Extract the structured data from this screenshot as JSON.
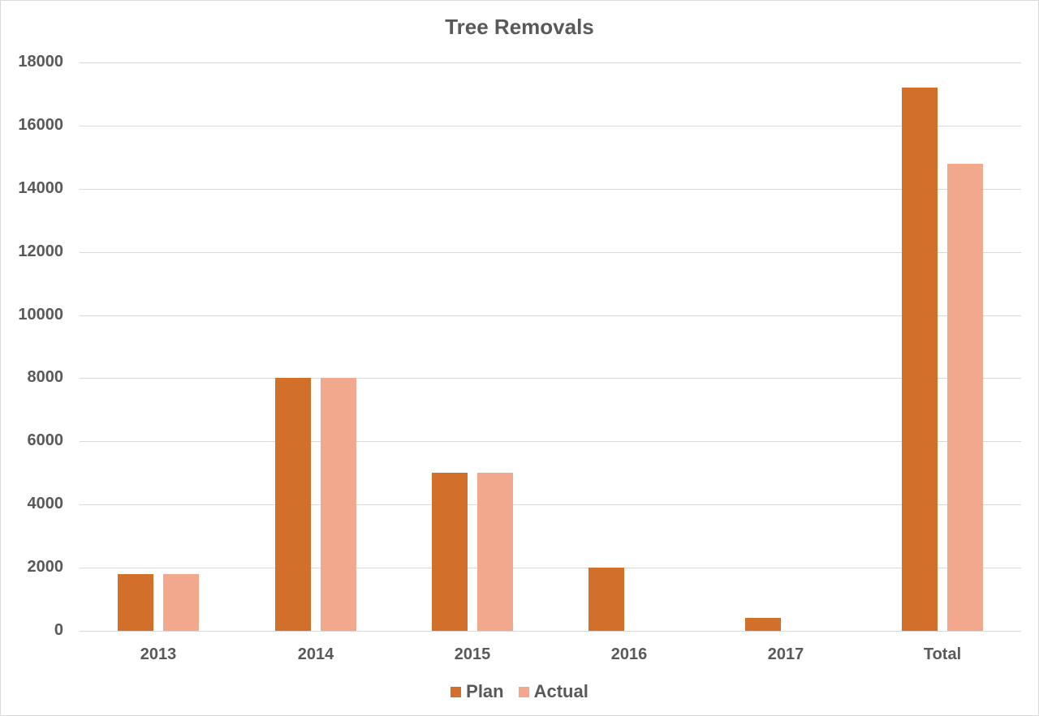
{
  "chart_data": {
    "type": "bar",
    "title": "Tree Removals",
    "xlabel": "",
    "ylabel": "",
    "categories": [
      "2013",
      "2014",
      "2015",
      "2016",
      "2017",
      "Total"
    ],
    "series": [
      {
        "name": "Plan",
        "color": "#d16f2b",
        "values": [
          1800,
          8000,
          5000,
          2000,
          400,
          17200
        ]
      },
      {
        "name": "Actual",
        "color": "#f2a88c",
        "values": [
          1800,
          8000,
          5000,
          0,
          0,
          14800
        ]
      }
    ],
    "ylim": [
      0,
      18000
    ],
    "yticks": [
      "0",
      "2000",
      "4000",
      "6000",
      "8000",
      "10000",
      "12000",
      "14000",
      "16000",
      "18000"
    ],
    "grid": true,
    "legend_position": "bottom"
  }
}
